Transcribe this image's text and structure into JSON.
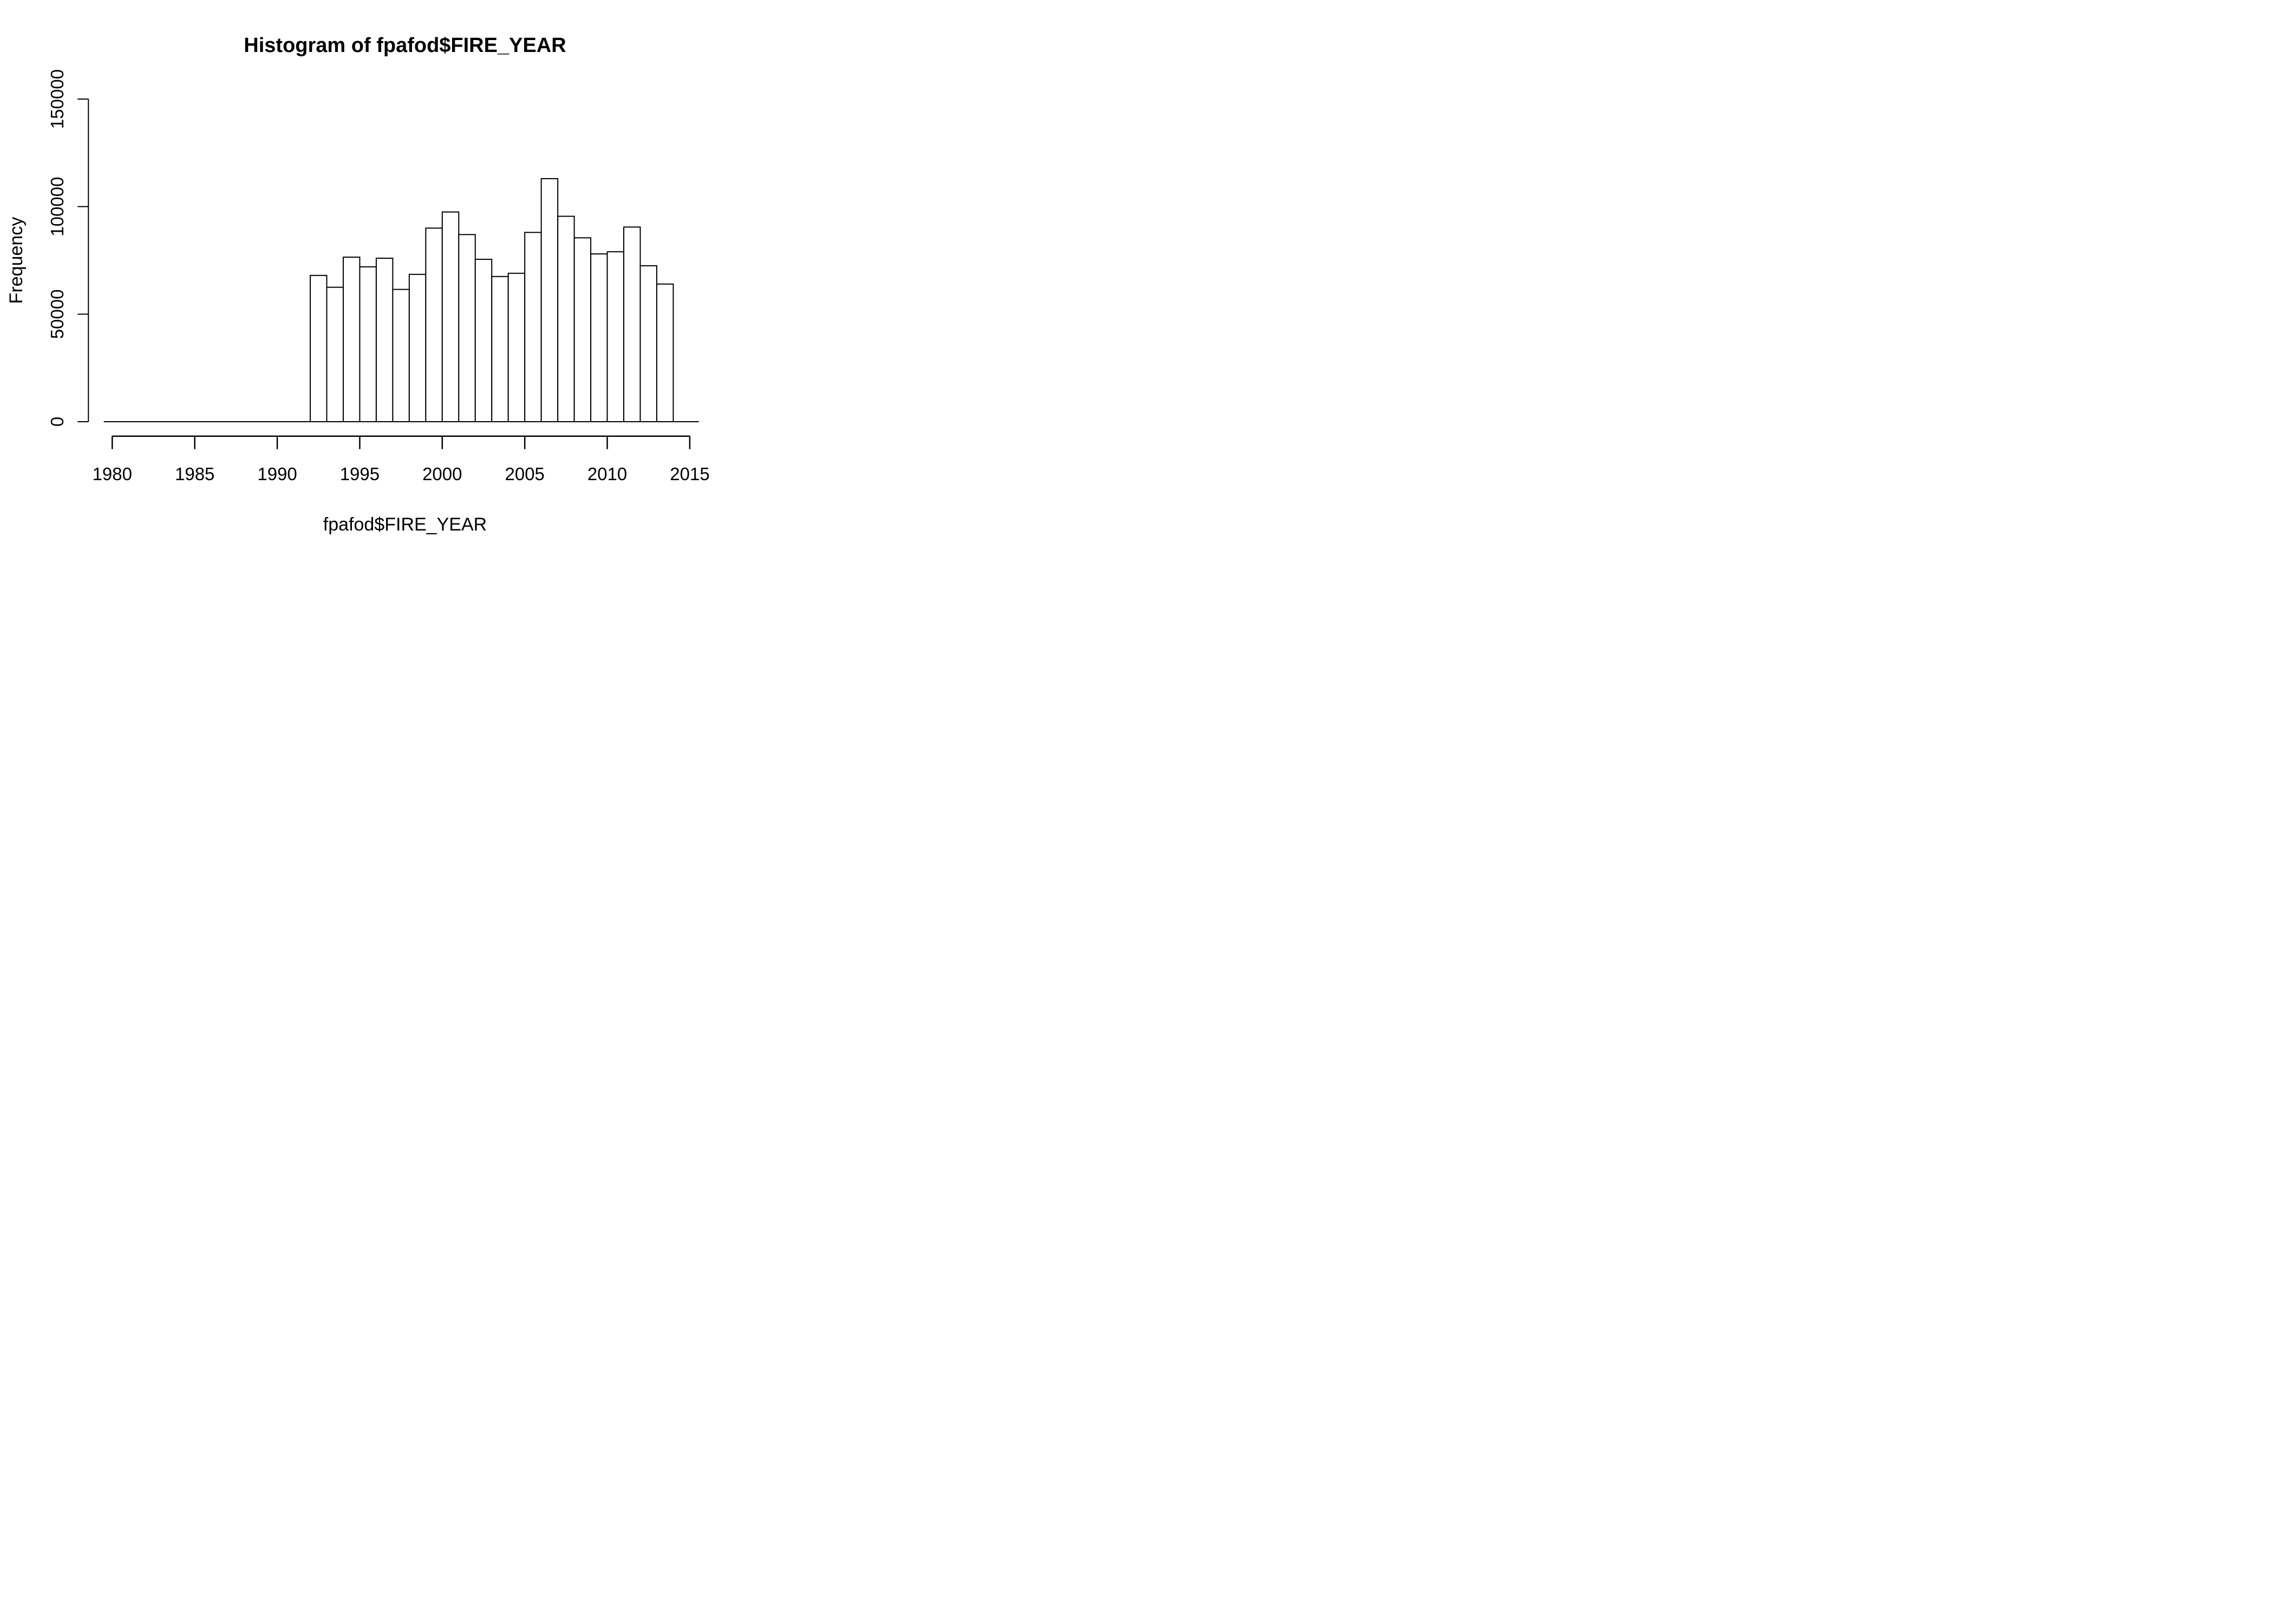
{
  "page": {
    "background": "#ffffff",
    "foreground": "#000000"
  },
  "chart_data": {
    "type": "bar",
    "chart_kind": "histogram",
    "title": "Histogram of fpafod$FIRE_YEAR",
    "xlabel": "fpafod$FIRE_YEAR",
    "ylabel": "Frequency",
    "bin_width": 1,
    "categories": [
      1992,
      1993,
      1994,
      1995,
      1996,
      1997,
      1998,
      1999,
      2000,
      2001,
      2002,
      2003,
      2004,
      2005,
      2006,
      2007,
      2008,
      2009,
      2010,
      2011,
      2012,
      2013
    ],
    "values": [
      68000,
      62500,
      76500,
      72000,
      76000,
      61500,
      68500,
      90000,
      97500,
      87000,
      75500,
      67500,
      69000,
      88000,
      113000,
      95500,
      85500,
      78000,
      79000,
      90500,
      72500,
      64000
    ],
    "x_ticks": [
      1980,
      1985,
      1990,
      1995,
      2000,
      2005,
      2010,
      2015
    ],
    "y_ticks": [
      0,
      50000,
      100000,
      150000
    ],
    "xlim": [
      1979.5,
      2016
    ],
    "ylim": [
      0,
      150000
    ],
    "grid": false,
    "legend": "none",
    "bar_fill": "#ffffff",
    "bar_stroke": "#000000",
    "axis_color": "#000000",
    "text_color": "#000000"
  }
}
